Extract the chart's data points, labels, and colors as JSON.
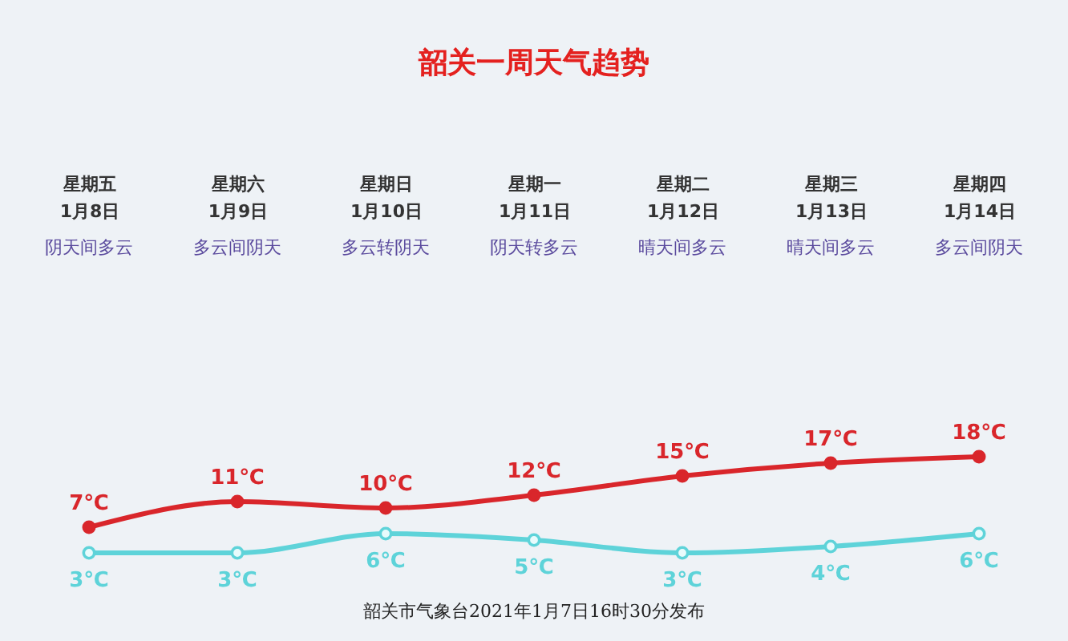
{
  "chart_data": {
    "type": "line",
    "title": "韶关一周天气趋势",
    "categories": [
      "星期五\n1月8日",
      "星期六\n1月9日",
      "星期日\n1月10日",
      "星期一\n1月11日",
      "星期二\n1月12日",
      "星期三\n1月13日",
      "星期四\n1月14日"
    ],
    "series": [
      {
        "color": "#d9262b",
        "values": [
          7,
          11,
          10,
          12,
          15,
          17,
          18
        ],
        "value_labels": [
          "7℃",
          "11℃",
          "10℃",
          "12℃",
          "15℃",
          "17℃",
          "18℃"
        ]
      },
      {
        "color": "#5ed3d9",
        "values": [
          3,
          3,
          6,
          5,
          3,
          4,
          6
        ],
        "value_labels": [
          "3℃",
          "3℃",
          "6℃",
          "5℃",
          "3℃",
          "4℃",
          "6℃"
        ]
      }
    ],
    "tick_labels": "x",
    "marker": "circle",
    "annotations": [
      "阴天间多云",
      "多云间阴天",
      "多云转阴天",
      "阴天转多云",
      "晴天间多云",
      "晴天间多云",
      "多云间阴天",
      "韶关市气象台2021年1月7日16时30分发布"
    ]
  }
}
